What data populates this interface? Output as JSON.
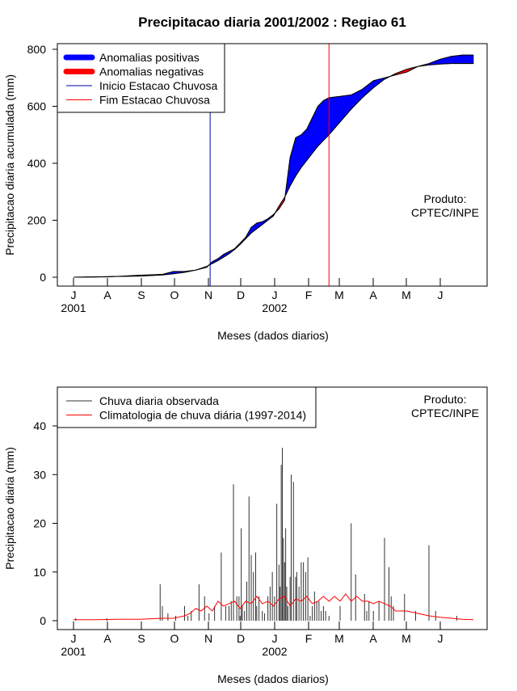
{
  "title": "Precipitacao diaria 2001/2002 : Regiao 61",
  "chart_data": [
    {
      "type": "area",
      "title": "Precipitacao diaria 2001/2002 : Regiao 61",
      "xlabel": "Meses (dados diarios)",
      "ylabel": "Precipitacao diaria acumulada (mm)",
      "ylim": [
        0,
        800
      ],
      "y_ticks": [
        0,
        200,
        400,
        600,
        800
      ],
      "x_ticks": [
        "J",
        "A",
        "S",
        "O",
        "N",
        "D",
        "J",
        "F",
        "M",
        "A",
        "M",
        "J"
      ],
      "year_labels": [
        {
          "label": "2001",
          "tick": 0
        },
        {
          "label": "2002",
          "tick": 6
        }
      ],
      "annotation": [
        "Produto:",
        "CPTEC/INPE"
      ],
      "legend": {
        "position": "top-left",
        "entries": [
          {
            "label": "Anomalias positivas",
            "color": "#0000ff",
            "style": "thick"
          },
          {
            "label": "Anomalias negativas",
            "color": "#ff0000",
            "style": "thick"
          },
          {
            "label": "Inicio Estacao Chuvosa",
            "color": "#0000aa",
            "style": "thin"
          },
          {
            "label": "Fim Estacao Chuvosa",
            "color": "#ff0000",
            "style": "thin"
          }
        ]
      },
      "rainy_season": {
        "start_day": 123,
        "end_day": 230
      },
      "series": [
        {
          "name": "observed_cumulative",
          "x": [
            0,
            30,
            60,
            80,
            90,
            100,
            110,
            120,
            125,
            130,
            135,
            140,
            145,
            150,
            155,
            160,
            165,
            170,
            175,
            180,
            185,
            190,
            195,
            200,
            205,
            210,
            215,
            220,
            225,
            230,
            240,
            250,
            260,
            270,
            280,
            290,
            300,
            310,
            320,
            330,
            340,
            350,
            360
          ],
          "y": [
            0,
            1,
            7,
            10,
            20,
            20,
            25,
            35,
            55,
            65,
            80,
            90,
            100,
            120,
            140,
            175,
            190,
            195,
            205,
            220,
            240,
            270,
            420,
            490,
            500,
            520,
            560,
            600,
            620,
            630,
            635,
            640,
            660,
            690,
            700,
            710,
            720,
            740,
            750,
            765,
            775,
            780,
            780
          ]
        },
        {
          "name": "climatology_cumulative",
          "x": [
            0,
            30,
            60,
            80,
            90,
            100,
            110,
            120,
            125,
            130,
            135,
            140,
            145,
            150,
            155,
            160,
            165,
            170,
            175,
            180,
            185,
            190,
            195,
            200,
            205,
            210,
            215,
            220,
            225,
            230,
            240,
            250,
            260,
            270,
            280,
            290,
            300,
            310,
            320,
            330,
            340,
            350,
            360
          ],
          "y": [
            0,
            2,
            4,
            8,
            12,
            17,
            25,
            38,
            48,
            58,
            70,
            82,
            97,
            115,
            135,
            155,
            170,
            185,
            200,
            215,
            250,
            280,
            320,
            355,
            385,
            410,
            435,
            460,
            480,
            500,
            545,
            590,
            630,
            665,
            695,
            715,
            730,
            740,
            745,
            748,
            750,
            750,
            750
          ]
        }
      ]
    },
    {
      "type": "bar",
      "xlabel": "Meses (dados diarios)",
      "ylabel": "Precipitacao diaria (mm)",
      "ylim": [
        0,
        45
      ],
      "y_ticks": [
        0,
        10,
        20,
        30,
        40
      ],
      "x_ticks": [
        "J",
        "A",
        "S",
        "O",
        "N",
        "D",
        "J",
        "F",
        "M",
        "A",
        "M",
        "J"
      ],
      "year_labels": [
        {
          "label": "2001",
          "tick": 0
        },
        {
          "label": "2002",
          "tick": 6
        }
      ],
      "annotation": [
        "Produto:",
        "CPTEC/INPE"
      ],
      "legend": {
        "position": "top-left",
        "entries": [
          {
            "label": "Chuva diaria observada",
            "color": "#333333",
            "style": "thin"
          },
          {
            "label": "Climatologia de chuva diária (1997-2014)",
            "color": "#ff0000",
            "style": "thin"
          }
        ]
      },
      "series": [
        {
          "name": "Chuva diaria observada",
          "x": [
            2,
            30,
            78,
            80,
            85,
            92,
            100,
            103,
            106,
            113,
            118,
            122,
            127,
            133,
            137,
            140,
            142,
            144,
            147,
            149,
            150,
            151,
            152,
            154,
            156,
            158,
            160,
            162,
            164,
            165,
            167,
            170,
            172,
            175,
            177,
            179,
            181,
            183,
            185,
            186,
            187,
            188,
            189,
            190,
            191,
            192,
            193,
            195,
            196,
            198,
            200,
            201,
            203,
            205,
            207,
            209,
            211,
            213,
            215,
            217,
            219,
            221,
            223,
            225,
            227,
            230,
            240,
            250,
            254,
            262,
            264,
            266,
            270,
            275,
            280,
            284,
            286,
            288,
            298,
            308,
            320,
            326,
            345
          ],
          "y": [
            0.5,
            0.5,
            7.5,
            3,
            1.5,
            1,
            3,
            1,
            2,
            7.5,
            5,
            1.5,
            3,
            14,
            3,
            3,
            4,
            28,
            5,
            5,
            1,
            19,
            3,
            2,
            8,
            25.5,
            13.5,
            10,
            14,
            3,
            5,
            2,
            1.5,
            5,
            7,
            10,
            5,
            24,
            11.5,
            7,
            32,
            35.5,
            17,
            12,
            19,
            7,
            3,
            9,
            30,
            28.5,
            9,
            10,
            7,
            12,
            12,
            10,
            13,
            1,
            3,
            6,
            4,
            4,
            2,
            3,
            2,
            1,
            3,
            20,
            9.5,
            5.5,
            2,
            4,
            2,
            4,
            17,
            11,
            5,
            3,
            5.5,
            2,
            15.5,
            2,
            1
          ]
        },
        {
          "name": "Climatologia de chuva diária (1997-2014)",
          "x": [
            0,
            20,
            40,
            60,
            80,
            90,
            100,
            105,
            110,
            115,
            120,
            125,
            130,
            135,
            140,
            145,
            150,
            155,
            160,
            165,
            170,
            175,
            180,
            185,
            190,
            195,
            200,
            205,
            210,
            215,
            220,
            225,
            230,
            235,
            240,
            245,
            250,
            255,
            260,
            265,
            270,
            275,
            280,
            285,
            290,
            300,
            310,
            320,
            330,
            340,
            350,
            360
          ],
          "y": [
            0.2,
            0.2,
            0.3,
            0.3,
            0.5,
            0.5,
            1,
            1.5,
            2.5,
            2,
            3,
            2,
            4,
            3,
            3.5,
            4,
            2.5,
            4,
            3.5,
            5,
            3.5,
            4,
            3,
            4.5,
            5,
            3,
            4.5,
            4,
            5,
            3.5,
            4,
            5,
            4,
            5,
            4,
            5.5,
            4,
            5,
            4,
            4,
            3.5,
            4,
            3.5,
            3,
            2,
            2,
            1.5,
            1,
            0.7,
            0.5,
            0.3,
            0.2
          ]
        }
      ]
    }
  ]
}
